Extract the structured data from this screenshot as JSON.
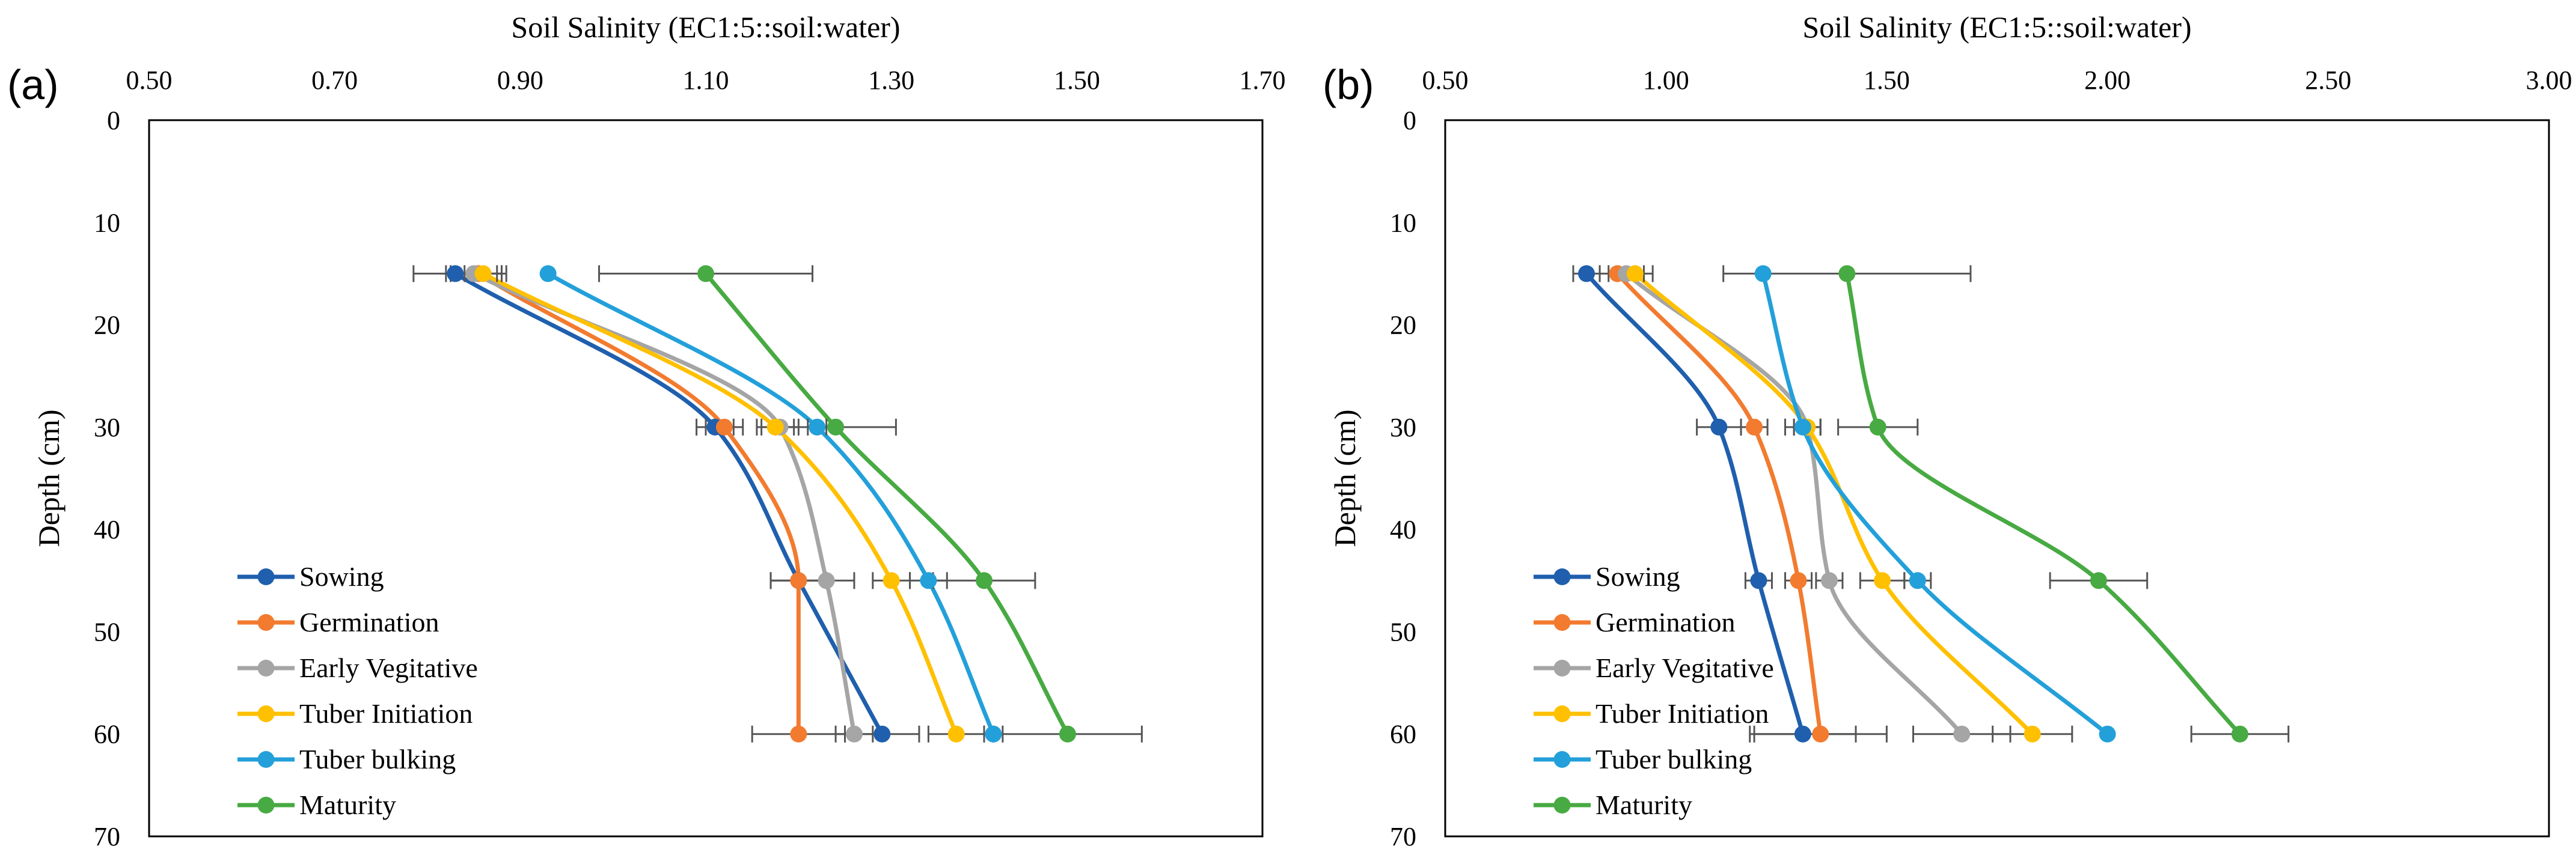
{
  "chart_data": [
    {
      "type": "line",
      "panel_label": "(a)",
      "title": "",
      "xlabel": "Soil Salinity (EC1:5::soil:water)",
      "ylabel": "Depth (cm)",
      "xlim": [
        0.5,
        1.7
      ],
      "ylim": [
        0,
        70
      ],
      "xticks": [
        "0.50",
        "0.70",
        "0.90",
        "1.10",
        "1.30",
        "1.50",
        "1.70"
      ],
      "yticks": [
        "0",
        "10",
        "20",
        "30",
        "40",
        "50",
        "60",
        "70"
      ],
      "depths": [
        15,
        30,
        45,
        60
      ],
      "legend_position": "bottom-left",
      "series": [
        {
          "name": "Sowing",
          "color": "#1F5FAD",
          "values": [
            0.83,
            1.11,
            1.2,
            1.29
          ],
          "errors": [
            0.045,
            0.02,
            0.03,
            0.04
          ]
        },
        {
          "name": "Germination",
          "color": "#F27B2F",
          "values": [
            0.855,
            1.12,
            1.2,
            1.2
          ],
          "errors": [
            0.03,
            0.02,
            0.03,
            0.05
          ]
        },
        {
          "name": "Early Vegitative",
          "color": "#A5A5A5",
          "values": [
            0.85,
            1.18,
            1.23,
            1.26
          ],
          "errors": [
            0.03,
            0.02,
            0.03,
            0.02
          ]
        },
        {
          "name": "Tuber Initiation",
          "color": "#FFC000",
          "values": [
            0.86,
            1.175,
            1.3,
            1.37
          ],
          "errors": [
            0.02,
            0.02,
            0.02,
            0.03
          ]
        },
        {
          "name": "Tuber bulking",
          "color": "#23A0DA",
          "values": [
            0.93,
            1.22,
            1.34,
            1.41
          ],
          "errors": [
            0.0,
            0.01,
            0.02,
            0.01
          ]
        },
        {
          "name": "Maturity",
          "color": "#47AA42",
          "values": [
            1.1,
            1.24,
            1.4,
            1.49
          ],
          "errors": [
            0.115,
            0.065,
            0.055,
            0.08
          ]
        }
      ]
    },
    {
      "type": "line",
      "panel_label": "(b)",
      "title": "",
      "xlabel": "Soil Salinity (EC1:5::soil:water)",
      "ylabel": "Depth (cm)",
      "xlim": [
        0.5,
        3.0
      ],
      "ylim": [
        0,
        70
      ],
      "xticks": [
        "0.50",
        "1.00",
        "1.50",
        "2.00",
        "2.50",
        "3.00"
      ],
      "yticks": [
        "0",
        "10",
        "20",
        "30",
        "40",
        "50",
        "60",
        "70"
      ],
      "depths": [
        15,
        30,
        45,
        60
      ],
      "legend_position": "bottom-left",
      "series": [
        {
          "name": "Sowing",
          "color": "#1F5FAD",
          "values": [
            0.82,
            1.12,
            1.21,
            1.31
          ],
          "errors": [
            0.03,
            0.05,
            0.03,
            0.12
          ]
        },
        {
          "name": "Germination",
          "color": "#F27B2F",
          "values": [
            0.89,
            1.2,
            1.3,
            1.35
          ],
          "errors": [
            0.04,
            0.03,
            0.03,
            0.15
          ]
        },
        {
          "name": "Early Vegitative",
          "color": "#A5A5A5",
          "values": [
            0.91,
            1.32,
            1.37,
            1.67
          ],
          "errors": [
            0.04,
            0.03,
            0.03,
            0.11
          ]
        },
        {
          "name": "Tuber Initiation",
          "color": "#FFC000",
          "values": [
            0.93,
            1.32,
            1.49,
            1.83
          ],
          "errors": [
            0.04,
            0.03,
            0.05,
            0.09
          ]
        },
        {
          "name": "Tuber bulking",
          "color": "#23A0DA",
          "values": [
            1.22,
            1.31,
            1.57,
            2.0
          ],
          "errors": [
            0.0,
            0.04,
            0.03,
            0.0
          ]
        },
        {
          "name": "Maturity",
          "color": "#47AA42",
          "values": [
            1.41,
            1.48,
            1.98,
            2.3
          ],
          "errors": [
            0.28,
            0.09,
            0.11,
            0.11
          ]
        }
      ]
    }
  ]
}
